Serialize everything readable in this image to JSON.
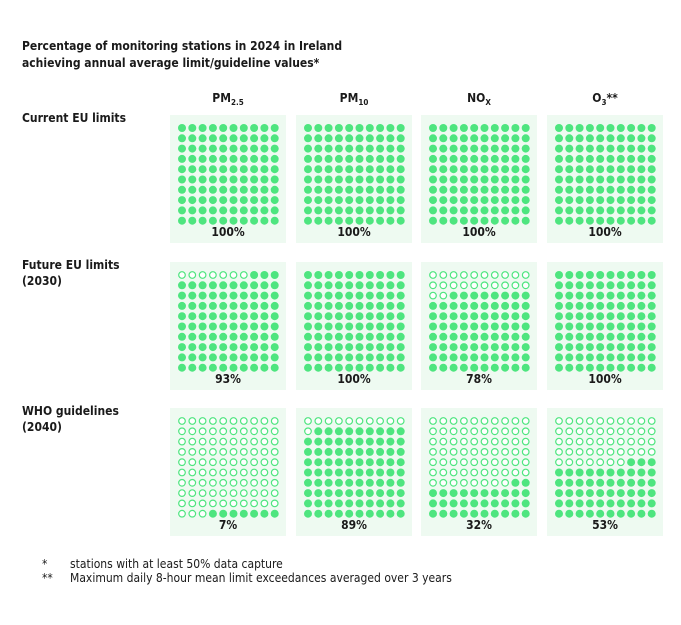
{
  "chart_data": {
    "type": "waffle",
    "title": [
      "Percentage of monitoring stations in 2024 in Ireland",
      "achieving annual average limit/guideline values*"
    ],
    "columns": [
      {
        "name": "PM",
        "sub": "2.5"
      },
      {
        "name": "PM",
        "sub": "10"
      },
      {
        "name": "NO",
        "sub": "X"
      },
      {
        "name": "O",
        "sub": "3",
        "suffix": "**"
      }
    ],
    "rows": [
      {
        "label": [
          "Current EU limits"
        ],
        "values": [
          100,
          100,
          100,
          100
        ],
        "value_labels": [
          "100%",
          "100%",
          "100%",
          "100%"
        ]
      },
      {
        "label": [
          "Future EU limits",
          "(2030)"
        ],
        "values": [
          93,
          100,
          78,
          100
        ],
        "value_labels": [
          "93%",
          "100%",
          "78%",
          "100%"
        ]
      },
      {
        "label": [
          "WHO guidelines",
          "(2040)"
        ],
        "values": [
          7,
          89,
          32,
          53
        ],
        "value_labels": [
          "7%",
          "89%",
          "32%",
          "53%"
        ]
      }
    ],
    "color": "#4ee57f",
    "panel_color": "#eefaf1",
    "footnotes": [
      {
        "mark": "*",
        "text": "stations with at least 50% data capture"
      },
      {
        "mark": "**",
        "text": "Maximum daily 8-hour mean limit exceedances averaged over 3 years"
      }
    ]
  }
}
